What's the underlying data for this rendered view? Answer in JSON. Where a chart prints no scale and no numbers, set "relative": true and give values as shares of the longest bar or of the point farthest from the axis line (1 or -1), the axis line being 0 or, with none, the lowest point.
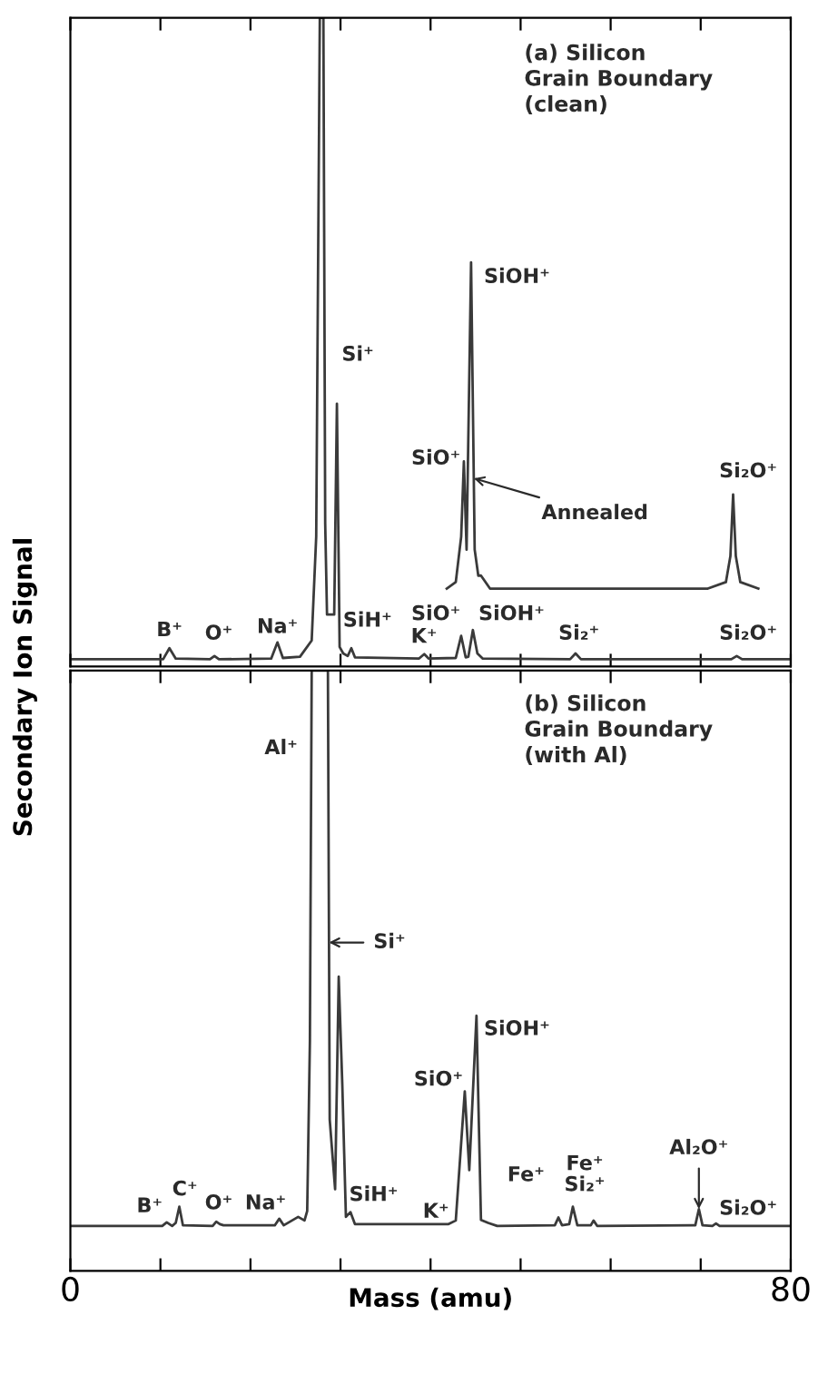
{
  "chart_data": [
    {
      "type": "line",
      "relative": true,
      "title": "(a) Silicon\nGrain Boundary\n(clean)",
      "ylabel": "Secondary Ion Signal",
      "xlim": [
        0,
        80
      ],
      "xticks": [
        0,
        {
          "value": 10,
          "label": null
        },
        {
          "value": 20,
          "label": null
        },
        {
          "value": 30,
          "label": null
        },
        {
          "value": 40,
          "label": null
        },
        {
          "value": 50,
          "label": null
        },
        {
          "value": 60,
          "label": null
        },
        {
          "value": 70,
          "label": null
        },
        80
      ],
      "tick_labels": false,
      "grid": false,
      "legend": false,
      "marker": "none",
      "line_style": "solid",
      "series": [
        {
          "color": "#3a3a3a",
          "x": [
            0,
            10.3,
            11,
            11.7,
            15.5,
            16,
            16.5,
            22.3,
            23,
            23.6,
            25.5,
            26.8,
            27.3,
            27.7,
            28.1,
            28.3,
            28.5,
            29.3,
            29.6,
            29.9,
            30.3,
            30.8,
            31.2,
            31.6,
            38.7,
            39.3,
            39.8,
            42.8,
            43.4,
            43.9,
            44.2,
            44.7,
            45.2,
            45.8,
            55.5,
            56.1,
            56.7,
            73.4,
            74,
            74.6,
            80
          ],
          "values": [
            0.011,
            0.011,
            0.028,
            0.012,
            0.011,
            0.016,
            0.011,
            0.012,
            0.037,
            0.013,
            0.015,
            0.04,
            0.2,
            1.0,
            1.0,
            0.22,
            0.08,
            0.08,
            0.405,
            0.03,
            0.02,
            0.016,
            0.028,
            0.014,
            0.012,
            0.019,
            0.012,
            0.013,
            0.047,
            0.014,
            0.015,
            0.056,
            0.02,
            0.012,
            0.011,
            0.02,
            0.011,
            0.011,
            0.016,
            0.011,
            0.011
          ]
        },
        {
          "color": "#3a3a3a",
          "x": [
            41.8,
            42.8,
            43.4,
            43.7,
            44.0,
            44.5,
            44.9,
            45.3,
            45.6,
            46.6,
            70.8,
            72.8,
            73.3,
            73.6,
            73.9,
            74.4,
            76.4
          ],
          "values": [
            0.12,
            0.13,
            0.2,
            0.316,
            0.18,
            0.623,
            0.18,
            0.14,
            0.14,
            0.12,
            0.12,
            0.13,
            0.17,
            0.265,
            0.17,
            0.13,
            0.12
          ]
        }
      ],
      "annotations": [
        "B⁺",
        "O⁺",
        "Na⁺",
        "Si⁺",
        "SiH⁺",
        "SiO⁺",
        "K⁺",
        "SiOH⁺",
        "Si₂⁺",
        "Si₂O⁺",
        "SiO⁺",
        "SiOH⁺",
        "Si₂O⁺",
        {
          "text": "Annealed",
          "x": 44.8,
          "y": 0.29
        }
      ]
    },
    {
      "type": "line",
      "relative": true,
      "title": "(b) Silicon\nGrain Boundary\n(with Al)",
      "xlabel": "Mass (amu)",
      "xlim": [
        0,
        80
      ],
      "xticks": [
        0,
        {
          "value": 10,
          "label": null
        },
        {
          "value": 20,
          "label": null
        },
        {
          "value": 30,
          "label": null
        },
        {
          "value": 40,
          "label": null
        },
        {
          "value": 50,
          "label": null
        },
        {
          "value": 60,
          "label": null
        },
        {
          "value": 70,
          "label": null
        },
        80
      ],
      "tick_labels": "x",
      "grid": false,
      "legend": false,
      "marker": "none",
      "line_style": "solid",
      "series": [
        {
          "color": "#3a3a3a",
          "x": [
            0,
            10.2,
            10.7,
            11.3,
            11.7,
            12.1,
            12.5,
            15.8,
            16.2,
            16.6,
            17.0,
            22.7,
            23.2,
            23.7,
            25.3,
            26.0,
            26.3,
            26.6,
            26.8,
            28.6,
            28.8,
            29.4,
            29.8,
            30.2,
            30.6,
            31.1,
            31.6,
            42.0,
            42.8,
            43.8,
            44.3,
            45.1,
            45.6,
            46.4,
            47.4,
            53.8,
            54.2,
            54.6,
            55.4,
            55.8,
            56.3,
            57.8,
            58.1,
            58.5,
            69.4,
            69.8,
            70.2,
            71.3,
            71.7,
            72.1,
            80
          ],
          "values": [
            0.075,
            0.075,
            0.081,
            0.075,
            0.08,
            0.107,
            0.076,
            0.075,
            0.082,
            0.078,
            0.076,
            0.076,
            0.087,
            0.076,
            0.09,
            0.084,
            0.1,
            0.383,
            1.0,
            1.0,
            0.252,
            0.136,
            0.49,
            0.31,
            0.09,
            0.098,
            0.078,
            0.078,
            0.084,
            0.299,
            0.168,
            0.425,
            0.085,
            0.08,
            0.075,
            0.076,
            0.089,
            0.076,
            0.078,
            0.107,
            0.076,
            0.076,
            0.084,
            0.075,
            0.076,
            0.103,
            0.076,
            0.075,
            0.079,
            0.075,
            0.075
          ]
        }
      ],
      "annotations": [
        "B⁺",
        "C⁺",
        "O⁺",
        "Na⁺",
        "Al⁺",
        {
          "text": "Si⁺",
          "x": 28.72,
          "y": 0.547
        },
        "SiH⁺",
        "K⁺",
        "SiO⁺",
        "SiOH⁺",
        "Fe⁺",
        "Fe⁺\nSi₂⁺",
        {
          "text": "Al₂O⁺",
          "x": 69.8,
          "y": 0.103
        },
        "Si₂O⁺"
      ]
    }
  ]
}
